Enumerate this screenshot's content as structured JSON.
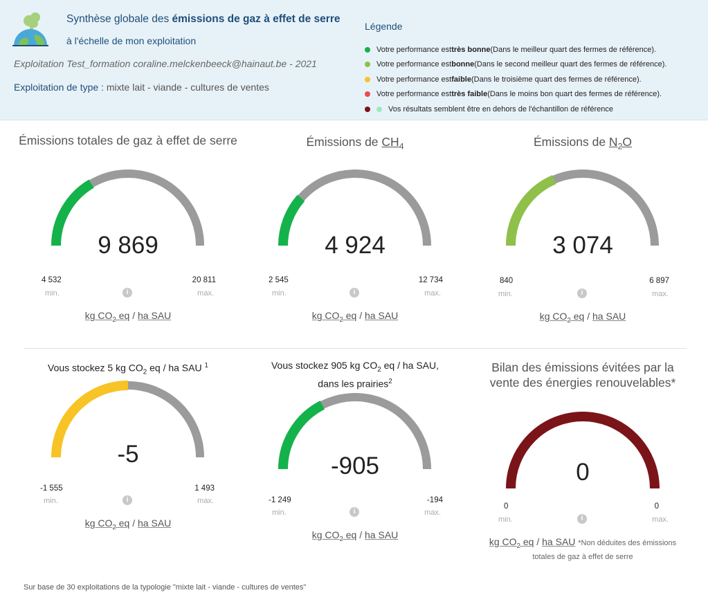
{
  "header": {
    "title_prefix": "Synthèse globale des ",
    "title_bold": "émissions de gaz à effet de serre",
    "subtitle": "à l'échelle de mon exploitation",
    "farm_line": "Exploitation Test_formation coraline.melckenbeeck@hainaut.be - 2021",
    "type_label": "Exploitation de type :",
    "type_value": " mixte lait - viande - cultures de ventes"
  },
  "legend": {
    "title": "Légende",
    "items": [
      {
        "color": "#14b24b",
        "pre": "Votre performance est ",
        "bold": "très bonne",
        "post": " (Dans le meilleur quart des fermes de référence)."
      },
      {
        "color": "#8ec04a",
        "pre": "Votre performance est ",
        "bold": "bonne",
        "post": " (Dans le second meilleur quart des fermes de référence)."
      },
      {
        "color": "#f7c325",
        "pre": "Votre performance est ",
        "bold": "faible",
        "post": " (Dans le troisième quart des fermes de référence)."
      },
      {
        "color": "#ec4a52",
        "pre": "Votre performance est ",
        "bold": "très faible",
        "post": " (Dans le moins bon quart des fermes de référence)."
      }
    ],
    "outside": {
      "color1": "#7b1418",
      "color2": "#9fe7c2",
      "text": "Vos résultats semblent être en dehors de l'échantillon de référence"
    }
  },
  "gauges": [
    {
      "title": "Émissions totales de gaz à effet de serre",
      "value": "9 869",
      "min": "4 532",
      "max": "20 811",
      "fraction": 0.33,
      "color": "#14b24b"
    },
    {
      "title_pre": "Émissions de ",
      "title_chem": "CH",
      "title_sub": "4",
      "value": "4 924",
      "min": "2 545",
      "max": "12 734",
      "fraction": 0.23,
      "color": "#14b24b"
    },
    {
      "title_pre": "Émissions de ",
      "title_chem": "N",
      "title_sub": "2",
      "title_post": "O",
      "value": "3 074",
      "min": "840",
      "max": "6 897",
      "fraction": 0.37,
      "color": "#8ec04a"
    },
    {
      "title_pre": "Vous stockez 5 kg CO",
      "title_sub": "2",
      "title_post": " eq / ha SAU ",
      "title_sup": "1",
      "value": "-5",
      "min": "-1 555",
      "max": "1 493",
      "fraction": 0.5,
      "color": "#f7c325"
    },
    {
      "title_pre": "Vous stockez 905 kg CO",
      "title_sub": "2",
      "title_post": " eq / ha SAU,",
      "title_line2": "dans les prairies",
      "title_sup": "2",
      "value": "-905",
      "min": "-1 249",
      "max": "-194",
      "fraction": 0.35,
      "color": "#14b24b"
    },
    {
      "title": "Bilan des émissions évitées par la vente des énergies renouvelables*",
      "value": "0",
      "min": "0",
      "max": "0",
      "fraction": 1.0,
      "color": "#7b1418"
    }
  ],
  "labels": {
    "min": "min.",
    "max": "max.",
    "info": "i",
    "unit_a": "kg CO",
    "unit_sub": "2",
    "unit_b": " eq",
    "unit_sep": " / ",
    "unit_c": "ha SAU",
    "track_color": "#9b9b9b"
  },
  "note_line1": "*Non déduites des émissions",
  "note_line2": "totales de gaz à effet de serre",
  "footer": "Sur base de 30 exploitations de la typologie \"mixte lait - viande - cultures de ventes\""
}
